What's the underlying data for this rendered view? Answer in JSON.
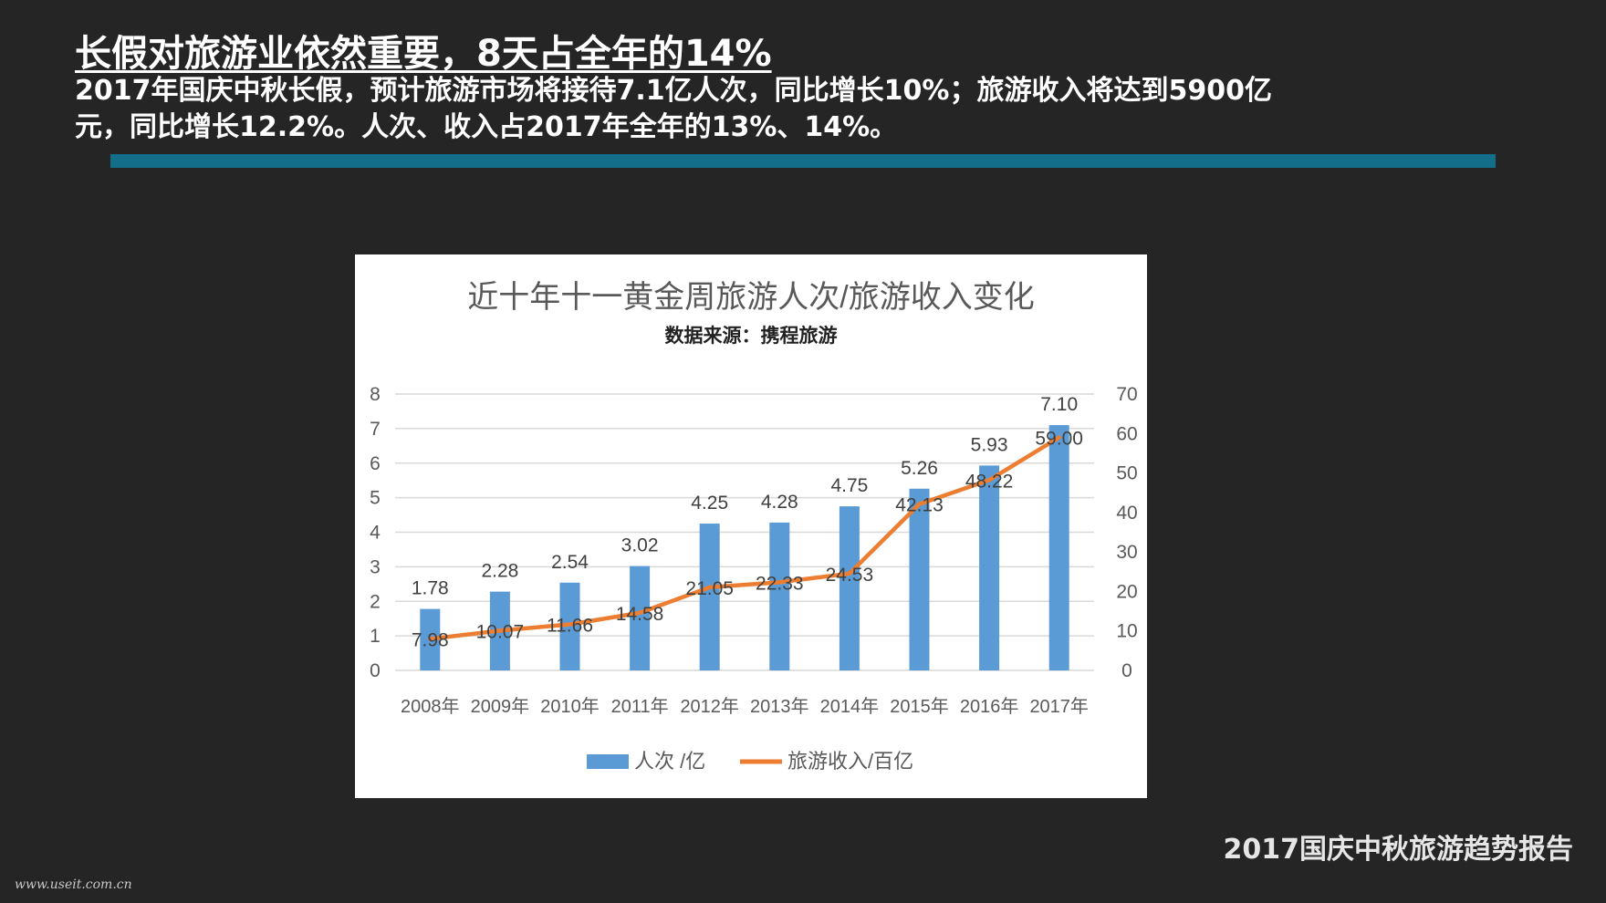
{
  "slide": {
    "title": "长假对旅游业依然重要，8天占全年的14%",
    "subtitle": "2017年国庆中秋长假，预计旅游市场将接待7.1亿人次，同比增长10%；旅游收入将达到5900亿元，同比增长12.2%。人次、收入占2017年全年的13%、14%。",
    "report_title": "2017国庆中秋旅游趋势报告",
    "watermark": "www.useit.com.cn"
  },
  "colors": {
    "background": "#252525",
    "accent_bar": "#136e8a",
    "bar": "#5b9bd5",
    "line": "#ed7d31"
  },
  "chart_data": {
    "type": "bar",
    "title": "近十年十一黄金周旅游人次/旅游收入变化",
    "subtitle": "数据来源：携程旅游",
    "categories": [
      "2008年",
      "2009年",
      "2010年",
      "2011年",
      "2012年",
      "2013年",
      "2014年",
      "2015年",
      "2016年",
      "2017年"
    ],
    "series": [
      {
        "name": "人次 /亿",
        "type": "bar",
        "axis": "left",
        "values": [
          1.78,
          2.28,
          2.54,
          3.02,
          4.25,
          4.28,
          4.75,
          5.26,
          5.93,
          7.1
        ],
        "labels": [
          "1.78",
          "2.28",
          "2.54",
          "3.02",
          "4.25",
          "4.28",
          "4.75",
          "5.26",
          "5.93",
          "7.10"
        ]
      },
      {
        "name": "旅游收入/百亿",
        "type": "line",
        "axis": "right",
        "values": [
          7.98,
          10.07,
          11.66,
          14.58,
          21.05,
          22.33,
          24.53,
          42.13,
          48.22,
          59.0
        ],
        "labels": [
          "7.98",
          "10.07",
          "11.66",
          "14.58",
          "21.05",
          "22.33",
          "24.53",
          "42.13",
          "48.22",
          "59.00"
        ]
      }
    ],
    "left_axis": {
      "min": 0,
      "max": 8,
      "ticks": [
        "0",
        "1",
        "2",
        "3",
        "4",
        "5",
        "6",
        "7",
        "8"
      ]
    },
    "right_axis": {
      "min": 0,
      "max": 70,
      "ticks": [
        "0",
        "10",
        "20",
        "30",
        "40",
        "50",
        "60",
        "70"
      ]
    },
    "grid": true,
    "legend": "bottom"
  }
}
